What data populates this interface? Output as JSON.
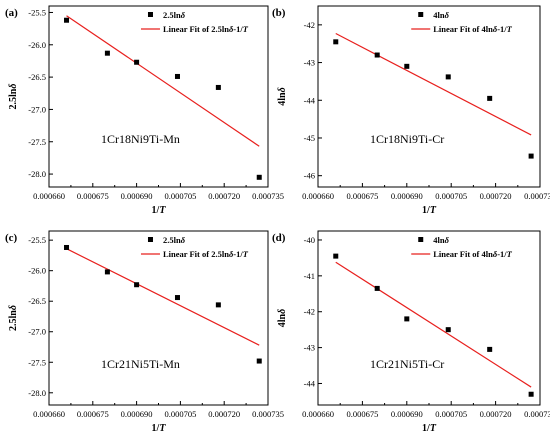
{
  "figure": {
    "colors": {
      "marker": "#000000",
      "fit_line": "#e8201e",
      "axis": "#000000",
      "background": "#ffffff"
    }
  },
  "chart_data": [
    {
      "panel": "(a)",
      "type": "scatter",
      "xlabel": "1/T",
      "ylabel": "2.5lnδ",
      "xlim": [
        0.00066,
        0.000735
      ],
      "ylim": [
        -28.2,
        -25.4
      ],
      "xticks": [
        "0.000660",
        "0.000675",
        "0.000690",
        "0.000705",
        "0.000720",
        "0.000735"
      ],
      "yticks": [
        "-25.5",
        "-26.0",
        "-26.5",
        "-27.0",
        "-27.5",
        "-28.0"
      ],
      "alloy": "1Cr18Ni9Ti-Mn",
      "legend_position": "top-right",
      "series": [
        {
          "name": "2.5lnδ",
          "kind": "scatter",
          "x": [
            0.000666,
            0.00068,
            0.00069,
            0.000704,
            0.000718,
            0.000732
          ],
          "y": [
            -25.62,
            -26.13,
            -26.27,
            -26.49,
            -26.66,
            -28.05
          ]
        },
        {
          "name": "Linear Fit of 2.5lnδ-1/T",
          "kind": "line",
          "x": [
            0.000666,
            0.000732
          ],
          "y": [
            -25.55,
            -27.57
          ]
        }
      ]
    },
    {
      "panel": "(b)",
      "type": "scatter",
      "xlabel": "1/T",
      "ylabel": "4lnδ",
      "xlim": [
        0.00066,
        0.000735
      ],
      "ylim": [
        -46.3,
        -41.5
      ],
      "xticks": [
        "0.000660",
        "0.000675",
        "0.000690",
        "0.000705",
        "0.000720",
        "0.000735"
      ],
      "yticks": [
        "-42",
        "-43",
        "-44",
        "-45",
        "-46"
      ],
      "alloy": "1Cr18Ni9Ti-Cr",
      "legend_position": "top-right",
      "series": [
        {
          "name": "4lnδ",
          "kind": "scatter",
          "x": [
            0.000666,
            0.00068,
            0.00069,
            0.000704,
            0.000718,
            0.000732
          ],
          "y": [
            -42.45,
            -42.8,
            -43.1,
            -43.38,
            -43.95,
            -45.48
          ]
        },
        {
          "name": "Linear Fit of 4lnδ-1/T",
          "kind": "line",
          "x": [
            0.000666,
            0.000732
          ],
          "y": [
            -42.23,
            -44.92
          ]
        }
      ]
    },
    {
      "panel": "(c)",
      "type": "scatter",
      "xlabel": "1/T",
      "ylabel": "2.5lnδ",
      "xlim": [
        0.00066,
        0.000735
      ],
      "ylim": [
        -28.2,
        -25.35
      ],
      "xticks": [
        "0.000660",
        "0.000675",
        "0.000690",
        "0.000705",
        "0.000720",
        "0.000735"
      ],
      "yticks": [
        "-25.5",
        "-26.0",
        "-26.5",
        "-27.0",
        "-27.5",
        "-28.0"
      ],
      "alloy": "1Cr21Ni5Ti-Mn",
      "legend_position": "top-right",
      "series": [
        {
          "name": "2.5lnδ",
          "kind": "scatter",
          "x": [
            0.000666,
            0.00068,
            0.00069,
            0.000704,
            0.000718,
            0.000732
          ],
          "y": [
            -25.62,
            -26.02,
            -26.23,
            -26.44,
            -26.56,
            -27.48
          ]
        },
        {
          "name": "Linear Fit of 2.5lnδ-1/T",
          "kind": "line",
          "x": [
            0.000666,
            0.000732
          ],
          "y": [
            -25.64,
            -27.22
          ]
        }
      ]
    },
    {
      "panel": "(d)",
      "type": "scatter",
      "xlabel": "1/T",
      "ylabel": "4lnδ",
      "xlim": [
        0.00066,
        0.000735
      ],
      "ylim": [
        -44.6,
        -39.75
      ],
      "xticks": [
        "0.000660",
        "0.000675",
        "0.000690",
        "0.000705",
        "0.000720",
        "0.000735"
      ],
      "yticks": [
        "-40",
        "-41",
        "-42",
        "-43",
        "-44"
      ],
      "alloy": "1Cr21Ni5Ti-Cr",
      "legend_position": "top-right",
      "series": [
        {
          "name": "4lnδ",
          "kind": "scatter",
          "x": [
            0.000666,
            0.00068,
            0.00069,
            0.000704,
            0.000718,
            0.000732
          ],
          "y": [
            -40.45,
            -41.35,
            -42.2,
            -42.5,
            -43.05,
            -44.3
          ]
        },
        {
          "name": "Linear Fit of 4lnδ-1/T",
          "kind": "line",
          "x": [
            0.000666,
            0.000732
          ],
          "y": [
            -40.62,
            -44.1
          ]
        }
      ]
    }
  ]
}
